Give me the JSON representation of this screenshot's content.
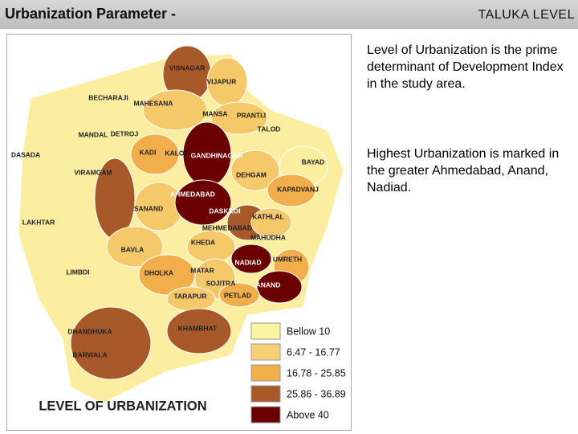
{
  "header": {
    "title": "Urbanization Parameter -",
    "subtitle": "TALUKA LEVEL"
  },
  "text": {
    "paragraphs": [
      "Level of Urbanization is the prime determinant of Development Index in the study area.",
      "Highest Urbanization is marked in the greater Ahmedabad, Anand, Nadiad."
    ]
  },
  "map": {
    "title": "LEVEL OF URBANIZATION",
    "labels": [
      "VISNAGAR",
      "VIJAPUR",
      "BECHARAJI",
      "MAHESANA",
      "MANSA",
      "PRANTIJ",
      "TALOD",
      "MANDAL",
      "DETROJ",
      "DASADA",
      "KADI",
      "KALOL",
      "GANDHINAGAR",
      "BAYAD",
      "VIRAMGAM",
      "DEHGAM",
      "DASKROI",
      "AHMEDABAD",
      "KAPADVANJ",
      "SANAND",
      "KATHLAL",
      "LAKHTAR",
      "MEHMEDABAD",
      "MAHUDHA",
      "KHEDA",
      "BAVLA",
      "NADIAD",
      "UMRETH",
      "LIMBDI",
      "DHOLKA",
      "MATAR",
      "SOJITRA",
      "ANAND",
      "TARAPUR",
      "PETLAD",
      "DHANDHUKA",
      "KHAMBHAT",
      "BARWALA"
    ],
    "legend": [
      {
        "label": "Bellow 10",
        "color": "#fbf5a0"
      },
      {
        "label": "6.47 - 16.77",
        "color": "#f7cf75"
      },
      {
        "label": "16.78 - 25.85",
        "color": "#f2ae4a"
      },
      {
        "label": "25.86 - 36.89",
        "color": "#a8592a"
      },
      {
        "label": "Above 40",
        "color": "#6b0000"
      }
    ]
  }
}
